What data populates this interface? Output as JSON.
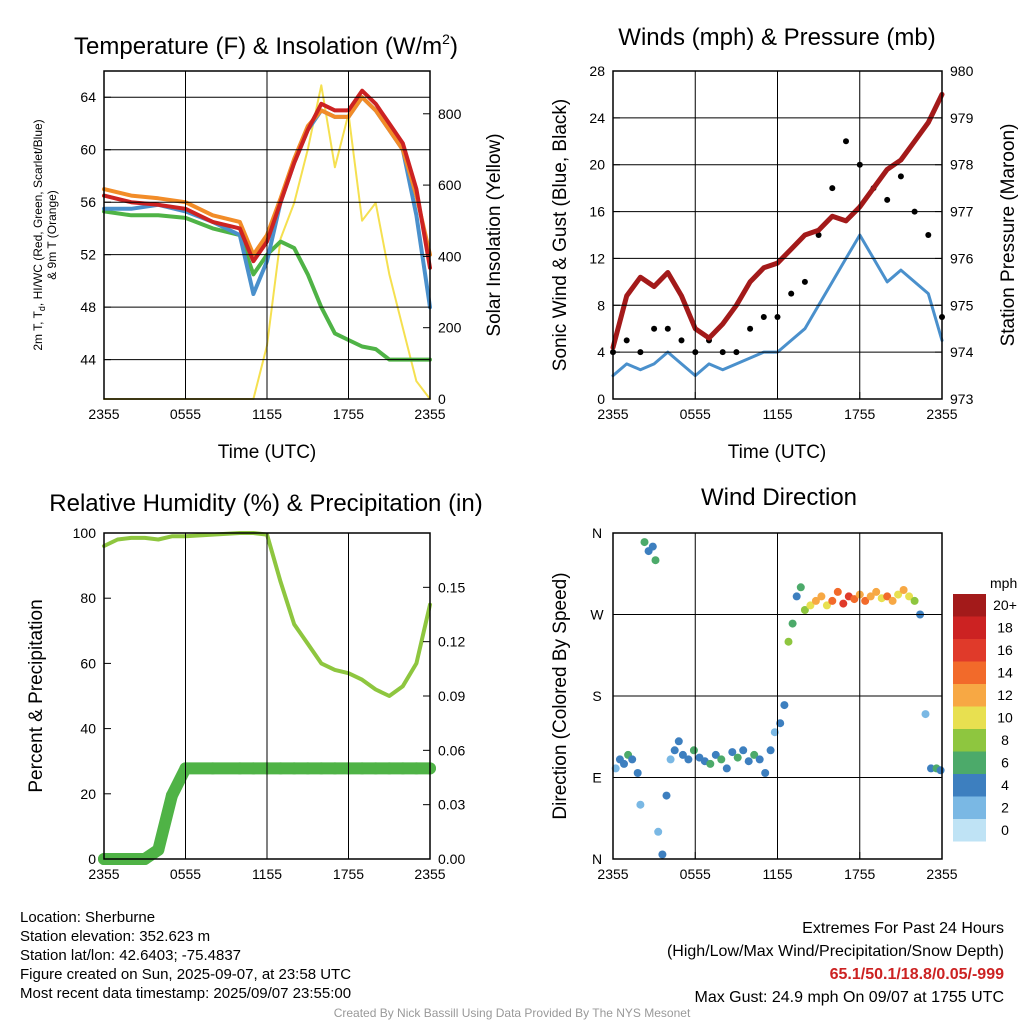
{
  "colors": {
    "red": "#cc2222",
    "orange": "#f28c28",
    "green": "#4fb346",
    "blue": "#4a90cc",
    "yellow": "#f5e050",
    "black": "#000000",
    "maroon": "#a31a1a",
    "rh_green": "#8ec63f",
    "precip_green": "#4fb346"
  },
  "time_ticks": [
    "2355",
    "0555",
    "1155",
    "1755",
    "2355"
  ],
  "panels": {
    "temperature": {
      "title": "Temperature (F) & Insolation (W/m",
      "title_sup": "2",
      "title_end": ")",
      "ylabel_left_1": "2m T, T",
      "ylabel_left_sub": "d",
      "ylabel_left_2": ", HI/WC (Red, Green, Scarlet/Blue)",
      "ylabel_left_3": "& 9m T (Orange)",
      "ylabel_right": "Solar Insolation (Yellow)",
      "xlabel": "Time (UTC)",
      "yticks_left": [
        "44",
        "48",
        "52",
        "56",
        "60",
        "64"
      ],
      "yticks_right": [
        "0",
        "200",
        "400",
        "600",
        "800"
      ]
    },
    "winds": {
      "title": "Winds (mph) & Pressure (mb)",
      "ylabel_left": "Sonic Wind & Gust (Blue, Black)",
      "ylabel_right": "Station Pressure (Maroon)",
      "xlabel": "Time (UTC)",
      "yticks_left": [
        "0",
        "4",
        "8",
        "12",
        "16",
        "20",
        "24",
        "28"
      ],
      "yticks_right": [
        "973",
        "974",
        "975",
        "976",
        "977",
        "978",
        "979",
        "980"
      ]
    },
    "humidity": {
      "title": "Relative Humidity (%) & Precipitation (in)",
      "ylabel_left": "Percent & Precipitation",
      "yticks_left": [
        "0",
        "20",
        "40",
        "60",
        "80",
        "100"
      ],
      "yticks_right": [
        "0.00",
        "0.03",
        "0.06",
        "0.09",
        "0.12",
        "0.15"
      ]
    },
    "direction": {
      "title": "Wind Direction",
      "ylabel_left": "Direction (Colored By Speed)",
      "yticks_left": [
        "N",
        "E",
        "S",
        "W",
        "N"
      ],
      "legend_title": "mph",
      "legend_labels": [
        "20+",
        "18",
        "16",
        "14",
        "12",
        "10",
        "8",
        "6",
        "4",
        "2",
        "0"
      ],
      "legend_colors": [
        "#a31a1a",
        "#cc2222",
        "#e03a2a",
        "#f26a2a",
        "#f7a844",
        "#e8e050",
        "#8ec63f",
        "#4caa6a",
        "#3d7fbf",
        "#7ab8e4",
        "#bfe3f5"
      ]
    }
  },
  "info": {
    "location": "Location: Sherburne",
    "elevation": "Station elevation: 352.623 m",
    "latlon": "Station lat/lon: 42.6403; -75.4837",
    "created": "Figure created on Sun, 2025-09-07, at 23:58 UTC",
    "recent": "Most recent data timestamp: 2025/09/07 23:55:00"
  },
  "extremes": {
    "title": "Extremes For Past 24 Hours",
    "subtitle": "(High/Low/Max Wind/Precipitation/Snow Depth)",
    "values": "65.1/50.1/18.8/0.05/-999",
    "gust": "Max Gust: 24.9 mph On 09/07 at 1755 UTC"
  },
  "credit": "Created By Nick Bassill Using Data Provided By The NYS Mesonet",
  "chart_data": [
    {
      "type": "line",
      "title": "Temperature (F) & Insolation (W/m2)",
      "xlabel": "Time (UTC)",
      "x_hours": [
        0,
        2,
        4,
        6,
        8,
        10,
        11,
        12,
        13,
        14,
        15,
        16,
        17,
        18,
        19,
        20,
        21,
        22,
        23,
        24
      ],
      "ylim": [
        41,
        66
      ],
      "y2lim": [
        0,
        920
      ],
      "series": [
        {
          "axis": "left",
          "color": "red",
          "values": [
            56.5,
            56,
            55.8,
            55.5,
            54.5,
            54,
            51.5,
            53,
            56,
            59,
            61.5,
            63.5,
            63,
            63,
            64.5,
            63.5,
            62,
            60.5,
            57,
            51
          ]
        },
        {
          "axis": "left",
          "color": "orange",
          "values": [
            57,
            56.5,
            56.3,
            56,
            55,
            54.5,
            52,
            53.5,
            56.3,
            59.3,
            61.8,
            63,
            62.5,
            62.5,
            64,
            63,
            61.5,
            60,
            56.5,
            52
          ]
        },
        {
          "axis": "left",
          "color": "green",
          "values": [
            55.3,
            55,
            55,
            54.8,
            54,
            53.5,
            50.5,
            52,
            53,
            52.5,
            50.5,
            48,
            46,
            45.5,
            45,
            44.8,
            44,
            44,
            44,
            44
          ]
        },
        {
          "axis": "left",
          "color": "blue",
          "values": [
            55.5,
            55.5,
            55.8,
            55.3,
            54.5,
            53.5,
            49,
            51.5,
            56,
            59,
            61.5,
            63,
            62.5,
            62.5,
            64,
            63,
            61.5,
            60,
            55,
            48
          ]
        },
        {
          "axis": "right",
          "color": "yellow",
          "values": [
            0,
            0,
            0,
            0,
            0,
            0,
            0,
            150,
            450,
            550,
            700,
            880,
            650,
            800,
            500,
            550,
            350,
            200,
            50,
            0
          ]
        }
      ]
    },
    {
      "type": "line",
      "title": "Winds (mph) & Pressure (mb)",
      "xlabel": "Time (UTC)",
      "x_hours": [
        0,
        1,
        2,
        3,
        4,
        5,
        6,
        7,
        8,
        9,
        10,
        11,
        12,
        13,
        14,
        15,
        16,
        17,
        18,
        19,
        20,
        21,
        22,
        23,
        24
      ],
      "ylim": [
        0,
        28
      ],
      "y2lim": [
        973,
        980
      ],
      "series": [
        {
          "axis": "left",
          "color": "blue",
          "name": "Sonic Wind",
          "values": [
            2,
            3,
            2.5,
            3,
            4,
            3,
            2,
            3,
            2.5,
            3,
            3.5,
            4,
            4,
            5,
            6,
            8,
            10,
            12,
            14,
            12,
            10,
            11,
            10,
            9,
            5
          ]
        },
        {
          "axis": "left",
          "color": "black",
          "name": "Gust",
          "values": [
            4,
            5,
            4,
            6,
            6,
            5,
            4,
            5,
            4,
            4,
            6,
            7,
            7,
            9,
            10,
            14,
            18,
            22,
            20,
            18,
            17,
            19,
            16,
            14,
            7
          ]
        },
        {
          "axis": "right",
          "color": "maroon",
          "name": "Pressure",
          "values": [
            974.1,
            975.2,
            975.6,
            975.4,
            975.7,
            975.2,
            974.5,
            974.3,
            974.6,
            975.0,
            975.5,
            975.8,
            975.9,
            976.2,
            976.5,
            976.6,
            976.9,
            976.8,
            977.1,
            977.5,
            977.9,
            978.1,
            978.5,
            978.9,
            979.5
          ]
        }
      ]
    },
    {
      "type": "line",
      "title": "Relative Humidity (%) & Precipitation (in)",
      "x_hours": [
        0,
        1,
        2,
        3,
        4,
        5,
        6,
        8,
        10,
        11,
        12,
        13,
        14,
        15,
        16,
        17,
        18,
        19,
        20,
        21,
        22,
        23,
        24
      ],
      "ylim": [
        0,
        100
      ],
      "y2lim": [
        0,
        0.18
      ],
      "series": [
        {
          "axis": "left",
          "color": "rh_green",
          "name": "RH",
          "values": [
            96,
            98,
            98.5,
            98.5,
            98,
            99,
            99,
            99.5,
            100,
            100,
            99.5,
            85,
            72,
            66,
            60,
            58,
            57,
            55,
            52,
            50,
            53,
            60,
            78
          ]
        },
        {
          "axis": "right",
          "color": "precip_green",
          "name": "Precip",
          "values": [
            0,
            0,
            0,
            0,
            0.005,
            0.035,
            0.05,
            0.05,
            0.05,
            0.05,
            0.05,
            0.05,
            0.05,
            0.05,
            0.05,
            0.05,
            0.05,
            0.05,
            0.05,
            0.05,
            0.05,
            0.05,
            0.05
          ]
        }
      ]
    },
    {
      "type": "scatter",
      "title": "Wind Direction",
      "ylabel": "Direction (Colored By Speed)",
      "points_hour_deg_mph": [
        [
          0.2,
          100,
          2
        ],
        [
          0.5,
          110,
          3
        ],
        [
          0.8,
          105,
          4
        ],
        [
          1.1,
          115,
          5
        ],
        [
          1.4,
          110,
          3
        ],
        [
          1.8,
          95,
          4
        ],
        [
          2.0,
          60,
          2
        ],
        [
          2.3,
          350,
          5
        ],
        [
          2.6,
          340,
          4
        ],
        [
          2.9,
          345,
          3
        ],
        [
          3.1,
          330,
          6
        ],
        [
          3.3,
          30,
          2
        ],
        [
          3.6,
          5,
          3
        ],
        [
          3.9,
          70,
          4
        ],
        [
          4.2,
          110,
          2
        ],
        [
          4.5,
          120,
          3
        ],
        [
          4.8,
          130,
          4
        ],
        [
          5.1,
          115,
          4
        ],
        [
          5.5,
          110,
          3
        ],
        [
          5.9,
          120,
          5
        ],
        [
          6.3,
          112,
          4
        ],
        [
          6.7,
          108,
          3
        ],
        [
          7.1,
          105,
          5
        ],
        [
          7.5,
          115,
          4
        ],
        [
          7.9,
          110,
          6
        ],
        [
          8.3,
          100,
          3
        ],
        [
          8.7,
          118,
          4
        ],
        [
          9.1,
          112,
          5
        ],
        [
          9.5,
          120,
          4
        ],
        [
          9.9,
          108,
          3
        ],
        [
          10.3,
          115,
          6
        ],
        [
          10.7,
          110,
          4
        ],
        [
          11.1,
          95,
          4
        ],
        [
          11.5,
          120,
          3
        ],
        [
          11.8,
          140,
          2
        ],
        [
          12.2,
          150,
          4
        ],
        [
          12.5,
          170,
          4
        ],
        [
          12.8,
          240,
          7
        ],
        [
          13.1,
          260,
          6
        ],
        [
          13.4,
          290,
          4
        ],
        [
          13.7,
          300,
          5
        ],
        [
          14.0,
          275,
          8
        ],
        [
          14.4,
          280,
          10
        ],
        [
          14.8,
          285,
          11
        ],
        [
          15.2,
          290,
          12
        ],
        [
          15.6,
          280,
          9
        ],
        [
          16.0,
          285,
          13
        ],
        [
          16.4,
          295,
          14
        ],
        [
          16.8,
          282,
          16
        ],
        [
          17.2,
          290,
          15
        ],
        [
          17.6,
          287,
          13
        ],
        [
          18.0,
          292,
          12
        ],
        [
          18.4,
          285,
          14
        ],
        [
          18.8,
          290,
          11
        ],
        [
          19.2,
          295,
          12
        ],
        [
          19.6,
          288,
          10
        ],
        [
          20.0,
          290,
          13
        ],
        [
          20.4,
          285,
          12
        ],
        [
          20.8,
          292,
          9
        ],
        [
          21.2,
          297,
          11
        ],
        [
          21.6,
          290,
          10
        ],
        [
          22.0,
          285,
          8
        ],
        [
          22.4,
          270,
          3
        ],
        [
          22.8,
          160,
          2
        ],
        [
          23.2,
          100,
          3
        ],
        [
          23.6,
          100,
          5
        ],
        [
          23.9,
          98,
          4
        ]
      ]
    }
  ]
}
